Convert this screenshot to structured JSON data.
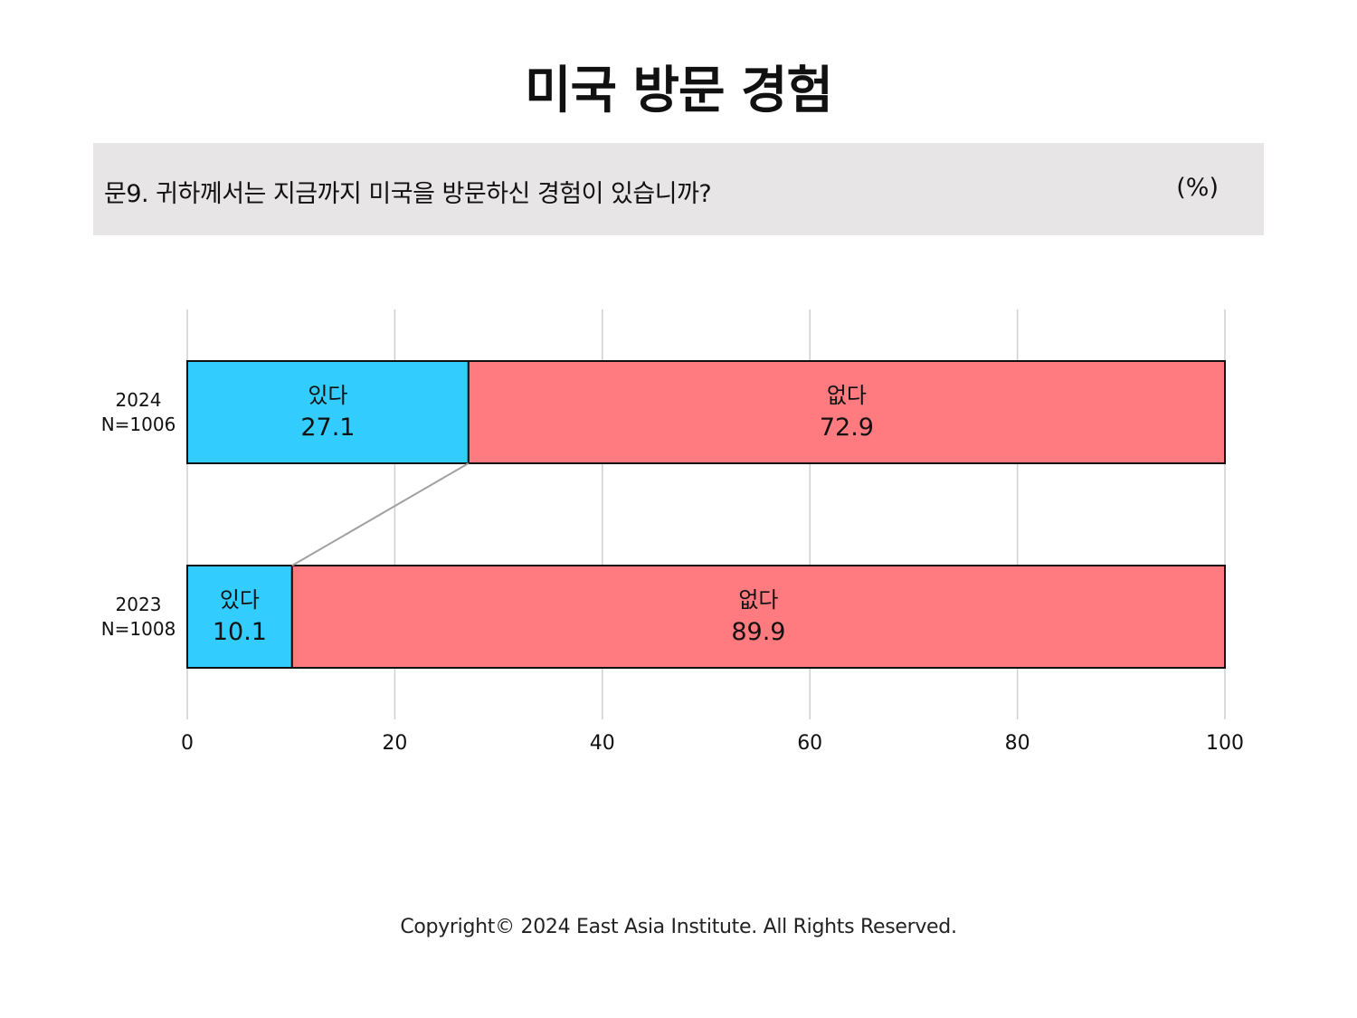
{
  "title": "미국 방문 경험",
  "question": {
    "text": "문9. 귀하께서는 지금까지 미국을 방문하신 경험이 있습니까?",
    "unit": "(%)"
  },
  "chart_data": {
    "type": "bar",
    "orientation": "horizontal-stacked",
    "categories": [
      {
        "year": "2024",
        "n": "N=1006"
      },
      {
        "year": "2023",
        "n": "N=1008"
      }
    ],
    "series": [
      {
        "name": "있다",
        "color": "#33ccff",
        "values": [
          27.1,
          10.1
        ]
      },
      {
        "name": "없다",
        "color": "#ff7b7f",
        "values": [
          72.9,
          89.9
        ]
      }
    ],
    "xlim": [
      0,
      100
    ],
    "xticks": [
      0,
      20,
      40,
      60,
      80,
      100
    ],
    "grid": true,
    "connector": "between 있다 segment ends"
  },
  "footer": "Copyright© 2024 East Asia Institute. All Rights Reserved."
}
